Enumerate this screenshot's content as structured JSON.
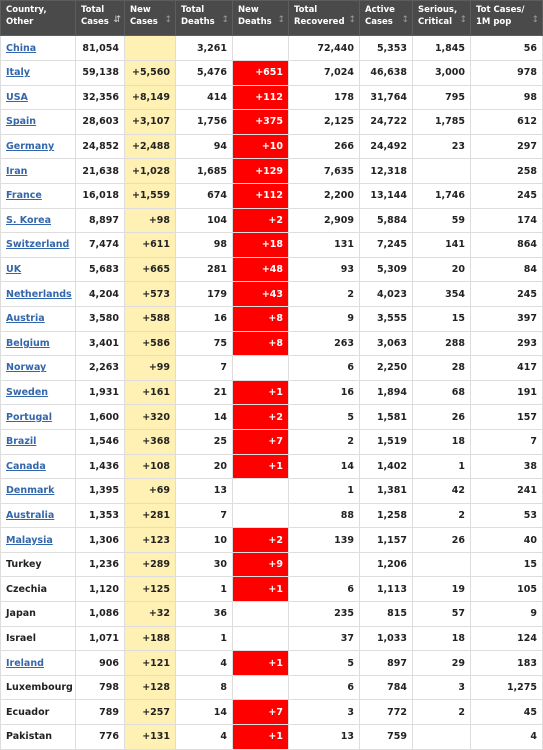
{
  "table": {
    "headers": [
      {
        "label": "Country,\nOther",
        "sortable": false,
        "active": false
      },
      {
        "label": "Total\nCases",
        "sortable": true,
        "active": true
      },
      {
        "label": "New\nCases",
        "sortable": true,
        "active": false
      },
      {
        "label": "Total\nDeaths",
        "sortable": true,
        "active": false
      },
      {
        "label": "New\nDeaths",
        "sortable": true,
        "active": false
      },
      {
        "label": "Total\nRecovered",
        "sortable": true,
        "active": false
      },
      {
        "label": "Active\nCases",
        "sortable": true,
        "active": false
      },
      {
        "label": "Serious,\nCritical",
        "sortable": true,
        "active": false
      },
      {
        "label": "Tot Cases/\n1M pop",
        "sortable": true,
        "active": false
      }
    ],
    "rows": [
      {
        "country": "China",
        "link": true,
        "total_cases": "81,054",
        "new_cases": "",
        "total_deaths": "3,261",
        "new_deaths": "",
        "total_recovered": "72,440",
        "active_cases": "5,353",
        "serious": "1,845",
        "per_million": "56"
      },
      {
        "country": "Italy",
        "link": true,
        "total_cases": "59,138",
        "new_cases": "+5,560",
        "total_deaths": "5,476",
        "new_deaths": "+651",
        "total_recovered": "7,024",
        "active_cases": "46,638",
        "serious": "3,000",
        "per_million": "978"
      },
      {
        "country": "USA",
        "link": true,
        "total_cases": "32,356",
        "new_cases": "+8,149",
        "total_deaths": "414",
        "new_deaths": "+112",
        "total_recovered": "178",
        "active_cases": "31,764",
        "serious": "795",
        "per_million": "98"
      },
      {
        "country": "Spain",
        "link": true,
        "total_cases": "28,603",
        "new_cases": "+3,107",
        "total_deaths": "1,756",
        "new_deaths": "+375",
        "total_recovered": "2,125",
        "active_cases": "24,722",
        "serious": "1,785",
        "per_million": "612"
      },
      {
        "country": "Germany",
        "link": true,
        "total_cases": "24,852",
        "new_cases": "+2,488",
        "total_deaths": "94",
        "new_deaths": "+10",
        "total_recovered": "266",
        "active_cases": "24,492",
        "serious": "23",
        "per_million": "297"
      },
      {
        "country": "Iran",
        "link": true,
        "total_cases": "21,638",
        "new_cases": "+1,028",
        "total_deaths": "1,685",
        "new_deaths": "+129",
        "total_recovered": "7,635",
        "active_cases": "12,318",
        "serious": "",
        "per_million": "258"
      },
      {
        "country": "France",
        "link": true,
        "total_cases": "16,018",
        "new_cases": "+1,559",
        "total_deaths": "674",
        "new_deaths": "+112",
        "total_recovered": "2,200",
        "active_cases": "13,144",
        "serious": "1,746",
        "per_million": "245"
      },
      {
        "country": "S. Korea",
        "link": true,
        "total_cases": "8,897",
        "new_cases": "+98",
        "total_deaths": "104",
        "new_deaths": "+2",
        "total_recovered": "2,909",
        "active_cases": "5,884",
        "serious": "59",
        "per_million": "174"
      },
      {
        "country": "Switzerland",
        "link": true,
        "total_cases": "7,474",
        "new_cases": "+611",
        "total_deaths": "98",
        "new_deaths": "+18",
        "total_recovered": "131",
        "active_cases": "7,245",
        "serious": "141",
        "per_million": "864"
      },
      {
        "country": "UK",
        "link": true,
        "total_cases": "5,683",
        "new_cases": "+665",
        "total_deaths": "281",
        "new_deaths": "+48",
        "total_recovered": "93",
        "active_cases": "5,309",
        "serious": "20",
        "per_million": "84"
      },
      {
        "country": "Netherlands",
        "link": true,
        "total_cases": "4,204",
        "new_cases": "+573",
        "total_deaths": "179",
        "new_deaths": "+43",
        "total_recovered": "2",
        "active_cases": "4,023",
        "serious": "354",
        "per_million": "245"
      },
      {
        "country": "Austria",
        "link": true,
        "total_cases": "3,580",
        "new_cases": "+588",
        "total_deaths": "16",
        "new_deaths": "+8",
        "total_recovered": "9",
        "active_cases": "3,555",
        "serious": "15",
        "per_million": "397"
      },
      {
        "country": "Belgium",
        "link": true,
        "total_cases": "3,401",
        "new_cases": "+586",
        "total_deaths": "75",
        "new_deaths": "+8",
        "total_recovered": "263",
        "active_cases": "3,063",
        "serious": "288",
        "per_million": "293"
      },
      {
        "country": "Norway",
        "link": true,
        "total_cases": "2,263",
        "new_cases": "+99",
        "total_deaths": "7",
        "new_deaths": "",
        "total_recovered": "6",
        "active_cases": "2,250",
        "serious": "28",
        "per_million": "417"
      },
      {
        "country": "Sweden",
        "link": true,
        "total_cases": "1,931",
        "new_cases": "+161",
        "total_deaths": "21",
        "new_deaths": "+1",
        "total_recovered": "16",
        "active_cases": "1,894",
        "serious": "68",
        "per_million": "191"
      },
      {
        "country": "Portugal",
        "link": true,
        "total_cases": "1,600",
        "new_cases": "+320",
        "total_deaths": "14",
        "new_deaths": "+2",
        "total_recovered": "5",
        "active_cases": "1,581",
        "serious": "26",
        "per_million": "157"
      },
      {
        "country": "Brazil",
        "link": true,
        "total_cases": "1,546",
        "new_cases": "+368",
        "total_deaths": "25",
        "new_deaths": "+7",
        "total_recovered": "2",
        "active_cases": "1,519",
        "serious": "18",
        "per_million": "7"
      },
      {
        "country": "Canada",
        "link": true,
        "total_cases": "1,436",
        "new_cases": "+108",
        "total_deaths": "20",
        "new_deaths": "+1",
        "total_recovered": "14",
        "active_cases": "1,402",
        "serious": "1",
        "per_million": "38"
      },
      {
        "country": "Denmark",
        "link": true,
        "total_cases": "1,395",
        "new_cases": "+69",
        "total_deaths": "13",
        "new_deaths": "",
        "total_recovered": "1",
        "active_cases": "1,381",
        "serious": "42",
        "per_million": "241"
      },
      {
        "country": "Australia",
        "link": true,
        "total_cases": "1,353",
        "new_cases": "+281",
        "total_deaths": "7",
        "new_deaths": "",
        "total_recovered": "88",
        "active_cases": "1,258",
        "serious": "2",
        "per_million": "53"
      },
      {
        "country": "Malaysia",
        "link": true,
        "total_cases": "1,306",
        "new_cases": "+123",
        "total_deaths": "10",
        "new_deaths": "+2",
        "total_recovered": "139",
        "active_cases": "1,157",
        "serious": "26",
        "per_million": "40"
      },
      {
        "country": "Turkey",
        "link": false,
        "total_cases": "1,236",
        "new_cases": "+289",
        "total_deaths": "30",
        "new_deaths": "+9",
        "total_recovered": "",
        "active_cases": "1,206",
        "serious": "",
        "per_million": "15"
      },
      {
        "country": "Czechia",
        "link": false,
        "total_cases": "1,120",
        "new_cases": "+125",
        "total_deaths": "1",
        "new_deaths": "+1",
        "total_recovered": "6",
        "active_cases": "1,113",
        "serious": "19",
        "per_million": "105"
      },
      {
        "country": "Japan",
        "link": false,
        "total_cases": "1,086",
        "new_cases": "+32",
        "total_deaths": "36",
        "new_deaths": "",
        "total_recovered": "235",
        "active_cases": "815",
        "serious": "57",
        "per_million": "9"
      },
      {
        "country": "Israel",
        "link": false,
        "total_cases": "1,071",
        "new_cases": "+188",
        "total_deaths": "1",
        "new_deaths": "",
        "total_recovered": "37",
        "active_cases": "1,033",
        "serious": "18",
        "per_million": "124"
      },
      {
        "country": "Ireland",
        "link": true,
        "total_cases": "906",
        "new_cases": "+121",
        "total_deaths": "4",
        "new_deaths": "+1",
        "total_recovered": "5",
        "active_cases": "897",
        "serious": "29",
        "per_million": "183"
      },
      {
        "country": "Luxembourg",
        "link": false,
        "total_cases": "798",
        "new_cases": "+128",
        "total_deaths": "8",
        "new_deaths": "",
        "total_recovered": "6",
        "active_cases": "784",
        "serious": "3",
        "per_million": "1,275"
      },
      {
        "country": "Ecuador",
        "link": false,
        "total_cases": "789",
        "new_cases": "+257",
        "total_deaths": "14",
        "new_deaths": "+7",
        "total_recovered": "3",
        "active_cases": "772",
        "serious": "2",
        "per_million": "45"
      },
      {
        "country": "Pakistan",
        "link": false,
        "total_cases": "776",
        "new_cases": "+131",
        "total_deaths": "4",
        "new_deaths": "+1",
        "total_recovered": "13",
        "active_cases": "759",
        "serious": "",
        "per_million": "4"
      }
    ]
  },
  "icons": {
    "sort": "sort-arrows-icon"
  },
  "colors": {
    "header_bg": "#4a4a4a",
    "new_cases_bg": "#fff1b3",
    "new_deaths_bg": "#ff0000",
    "link": "#3366aa",
    "border": "#dddddd"
  }
}
